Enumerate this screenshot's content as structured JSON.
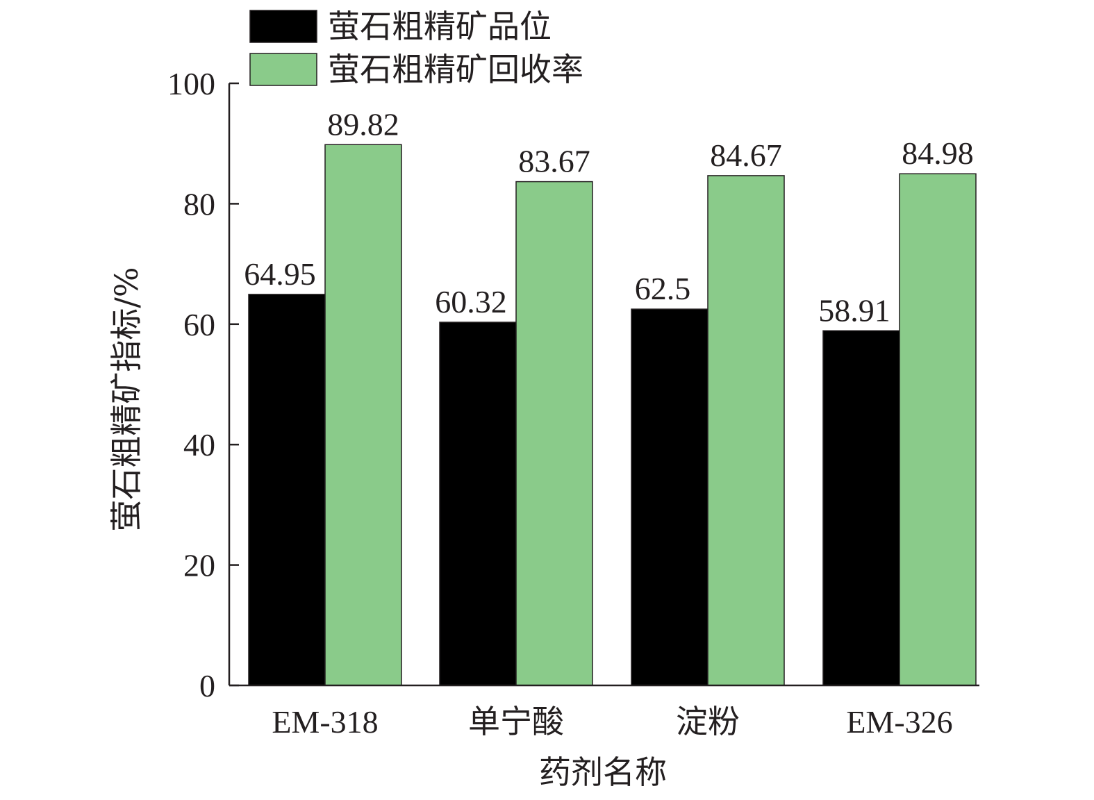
{
  "chart_data": {
    "type": "bar",
    "categories": [
      "EM-318",
      "单宁酸",
      "淀粉",
      "EM-326"
    ],
    "series": [
      {
        "name": "萤石粗精矿品位",
        "values": [
          64.95,
          60.32,
          62.5,
          58.91
        ],
        "color": "#000000"
      },
      {
        "name": "萤石粗精矿回收率",
        "values": [
          89.82,
          83.67,
          84.67,
          84.98
        ],
        "color": "#8acb8a"
      }
    ],
    "value_labels": [
      [
        "64.95",
        "60.32",
        "62.5",
        "58.91"
      ],
      [
        "89.82",
        "83.67",
        "84.67",
        "84.98"
      ]
    ],
    "xlabel": "药剂名称",
    "ylabel": "萤石粗精矿指标/%",
    "ylim": [
      0,
      100
    ],
    "yticks": [
      "0",
      "20",
      "40",
      "60",
      "80",
      "100"
    ],
    "legend_position": "top-left",
    "grid": false
  }
}
